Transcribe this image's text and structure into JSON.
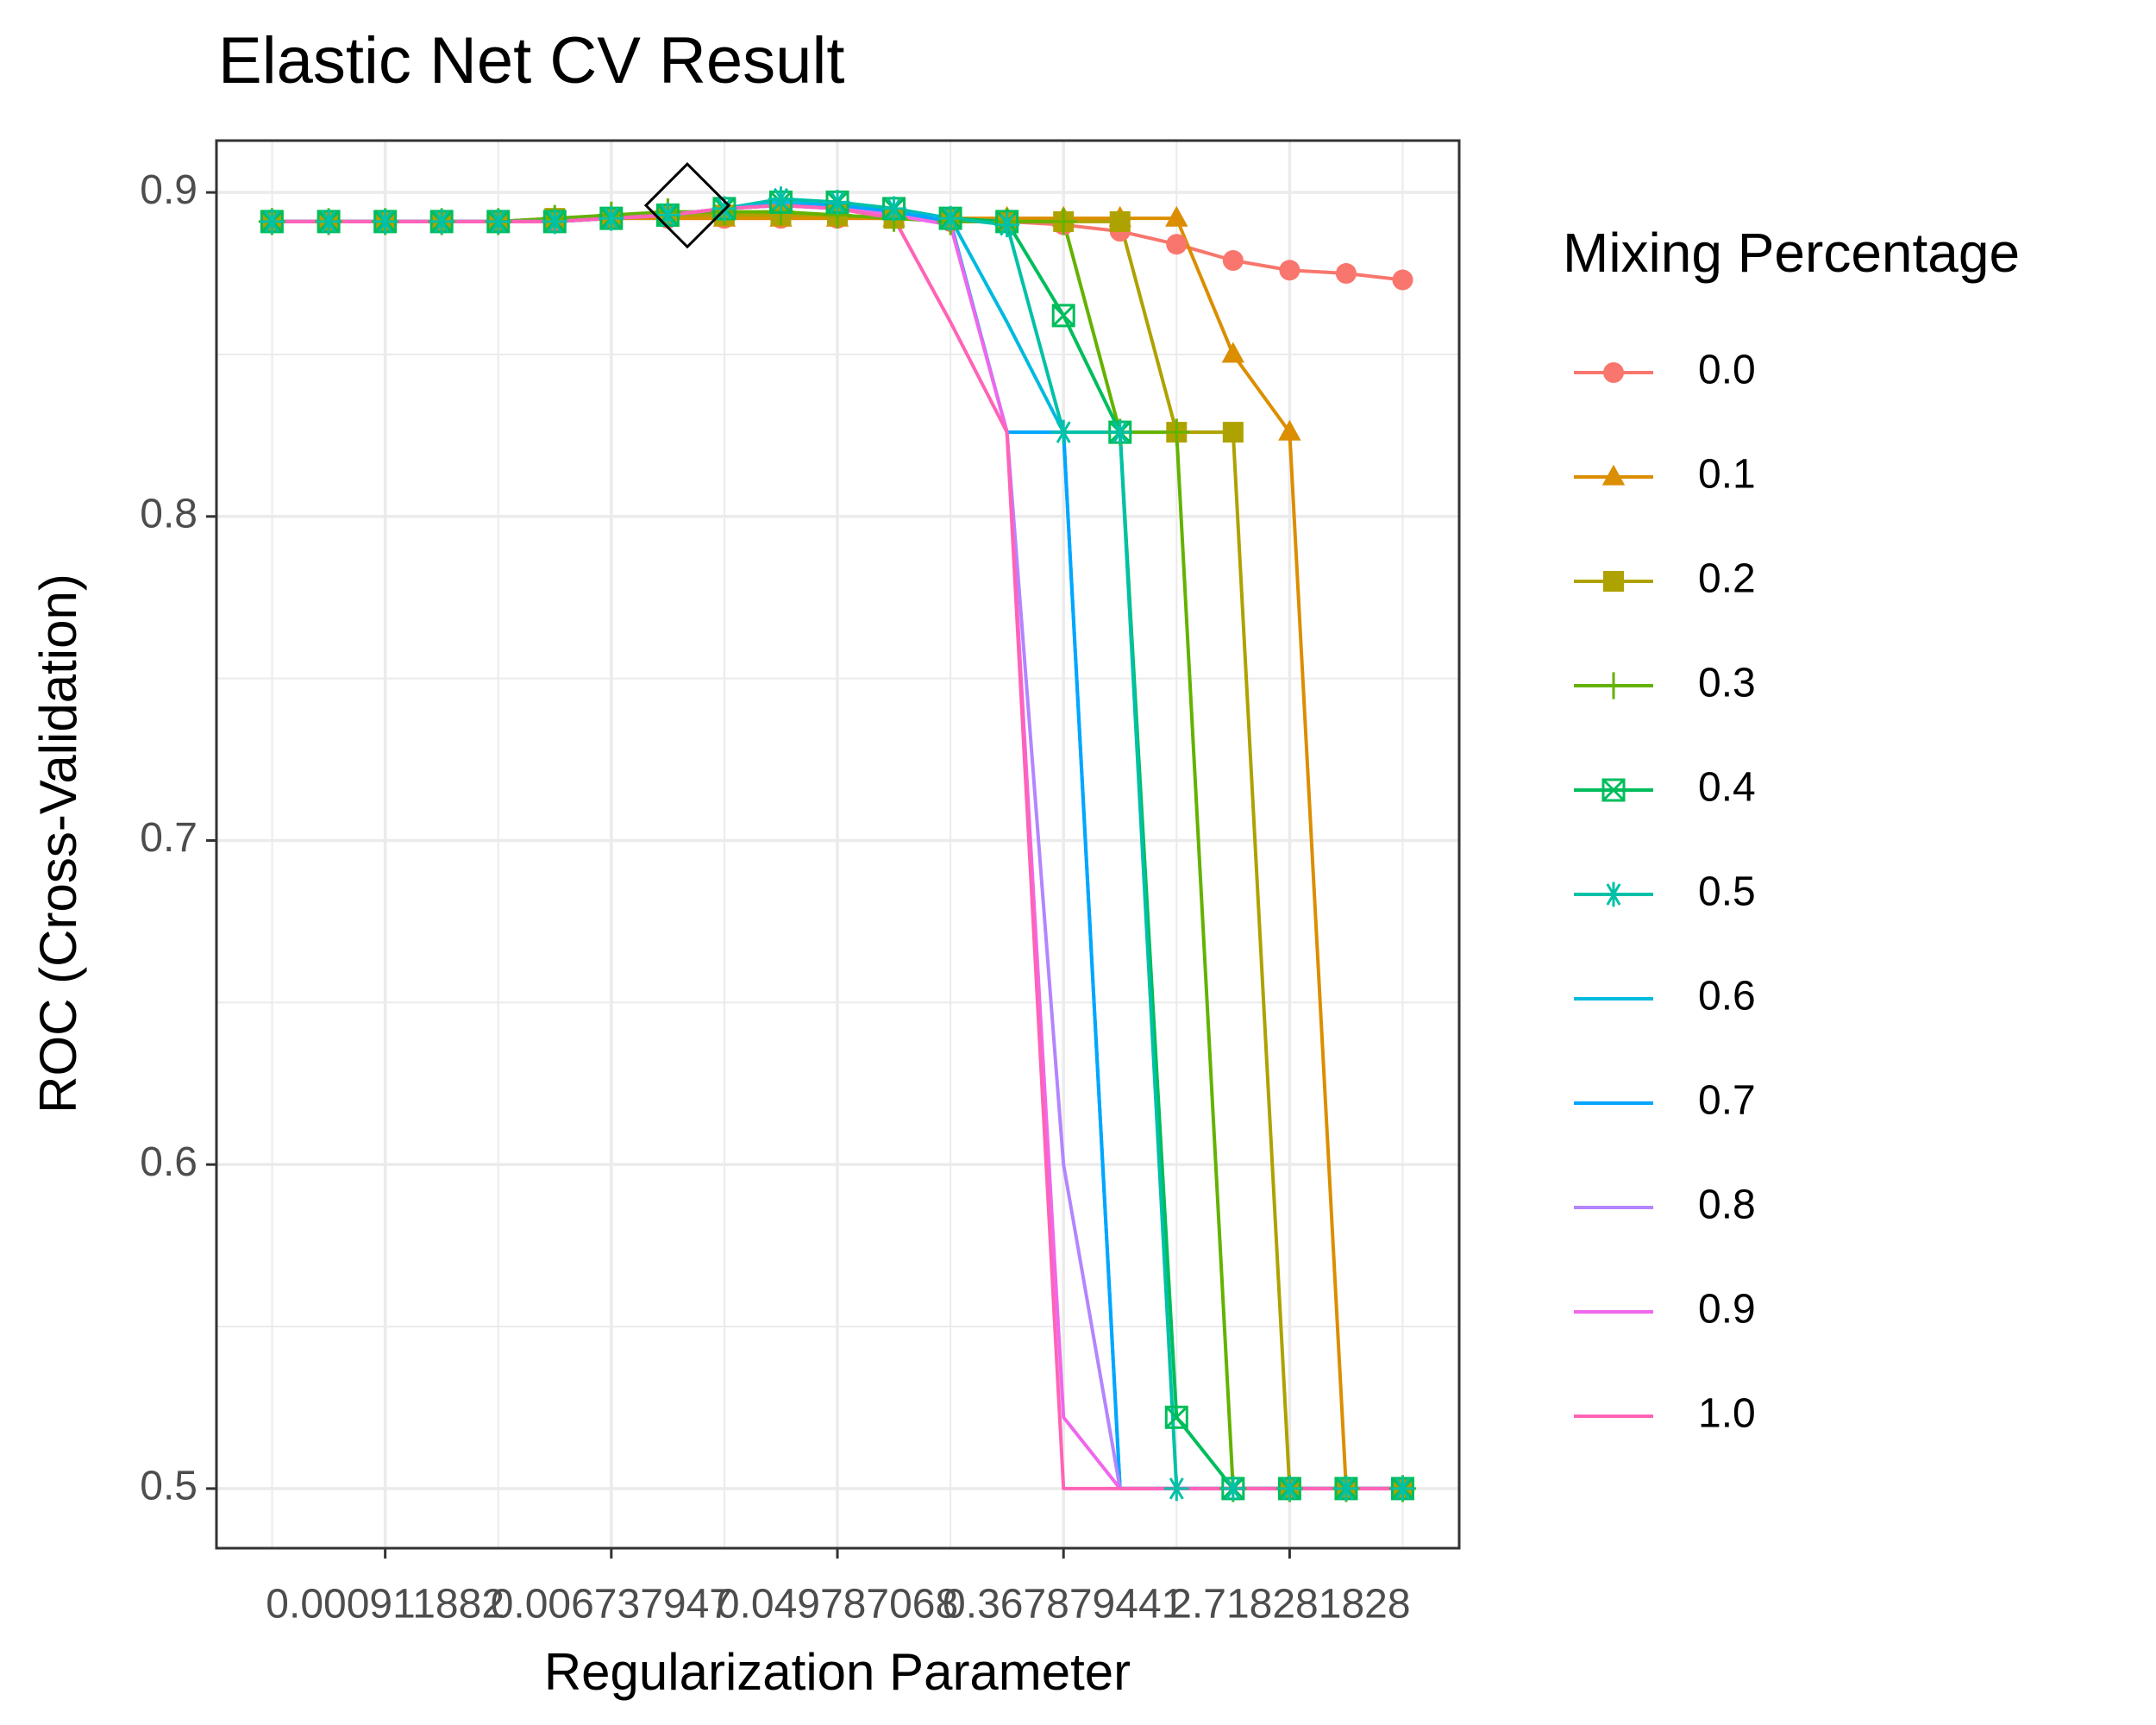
{
  "chart_data": {
    "type": "line",
    "title": "Elastic Net CV Result",
    "x_label": "Regularization Parameter",
    "y_label": "ROC (Cross-Validation)",
    "legend_title": "Mixing Percentage",
    "legend_position": "right",
    "xscale": "log",
    "grid": true,
    "xlim": [
      0.000205,
      12.18
    ],
    "ylim": [
      0.4816,
      0.916
    ],
    "xticks": [
      0.000911882,
      0.006737947,
      0.049787068,
      0.367879441,
      2.718281828
    ],
    "yticks": [
      0.5,
      0.6,
      0.7,
      0.8,
      0.9
    ],
    "x": [
      0.000335,
      0.000553,
      0.000912,
      0.001503,
      0.002479,
      0.004087,
      0.006738,
      0.011109,
      0.018316,
      0.030197,
      0.049787,
      0.082085,
      0.135335,
      0.22313,
      0.367879,
      0.606531,
      1,
      1.648721,
      2.718282,
      4.481689,
      7.389056
    ],
    "series": [
      {
        "name": "0.0",
        "color": "#F8766D",
        "shape": "circle",
        "values": [
          0.891,
          0.891,
          0.891,
          0.891,
          0.891,
          0.891,
          0.892,
          0.892,
          0.892,
          0.892,
          0.892,
          0.892,
          0.891,
          0.891,
          0.89,
          0.888,
          0.884,
          0.879,
          0.876,
          0.875,
          0.873
        ]
      },
      {
        "name": "0.1",
        "color": "#DB8E00",
        "shape": "triangle",
        "values": [
          0.891,
          0.891,
          0.891,
          0.891,
          0.891,
          0.892,
          0.892,
          0.892,
          0.892,
          0.892,
          0.892,
          0.892,
          0.892,
          0.892,
          0.892,
          0.892,
          0.892,
          0.85,
          0.826,
          0.5,
          0.5
        ]
      },
      {
        "name": "0.2",
        "color": "#AEA200",
        "shape": "square",
        "values": [
          0.891,
          0.891,
          0.891,
          0.891,
          0.891,
          0.892,
          0.892,
          0.893,
          0.893,
          0.893,
          0.893,
          0.892,
          0.892,
          0.891,
          0.891,
          0.891,
          0.826,
          0.826,
          0.5,
          0.5,
          0.5
        ]
      },
      {
        "name": "0.3",
        "color": "#64B200",
        "shape": "plus",
        "values": [
          0.891,
          0.891,
          0.891,
          0.891,
          0.891,
          0.892,
          0.893,
          0.894,
          0.894,
          0.894,
          0.893,
          0.892,
          0.891,
          0.891,
          0.891,
          0.826,
          0.826,
          0.5,
          0.5,
          0.5,
          0.5
        ]
      },
      {
        "name": "0.4",
        "color": "#00BD5C",
        "shape": "square-x",
        "values": [
          0.891,
          0.891,
          0.891,
          0.891,
          0.891,
          0.891,
          0.892,
          0.893,
          0.895,
          0.897,
          0.897,
          0.895,
          0.892,
          0.891,
          0.862,
          0.826,
          0.522,
          0.5,
          0.5,
          0.5,
          0.5
        ]
      },
      {
        "name": "0.5",
        "color": "#00C1A7",
        "shape": "asterisk",
        "values": [
          0.891,
          0.891,
          0.891,
          0.891,
          0.891,
          0.891,
          0.892,
          0.893,
          0.895,
          0.898,
          0.897,
          0.895,
          0.892,
          0.89,
          0.826,
          0.826,
          0.5,
          0.5,
          0.5,
          0.5,
          0.5
        ]
      },
      {
        "name": "0.6",
        "color": "#00BADE",
        "values": [
          0.891,
          0.891,
          0.891,
          0.891,
          0.891,
          0.891,
          0.892,
          0.893,
          0.895,
          0.897,
          0.896,
          0.894,
          0.892,
          0.86,
          0.826,
          0.5,
          0.5,
          0.5,
          0.5,
          0.5,
          0.5
        ]
      },
      {
        "name": "0.7",
        "color": "#00A6FF",
        "values": [
          0.891,
          0.891,
          0.891,
          0.891,
          0.891,
          0.891,
          0.892,
          0.893,
          0.895,
          0.896,
          0.896,
          0.894,
          0.891,
          0.826,
          0.826,
          0.5,
          0.5,
          0.5,
          0.5,
          0.5,
          0.5
        ]
      },
      {
        "name": "0.8",
        "color": "#B385FF",
        "values": [
          0.891,
          0.891,
          0.891,
          0.891,
          0.891,
          0.891,
          0.892,
          0.893,
          0.895,
          0.896,
          0.895,
          0.893,
          0.89,
          0.826,
          0.6,
          0.5,
          0.5,
          0.5,
          0.5,
          0.5,
          0.5
        ]
      },
      {
        "name": "0.9",
        "color": "#EF67EB",
        "values": [
          0.891,
          0.891,
          0.891,
          0.891,
          0.891,
          0.891,
          0.892,
          0.893,
          0.895,
          0.896,
          0.895,
          0.893,
          0.89,
          0.826,
          0.522,
          0.5,
          0.5,
          0.5,
          0.5,
          0.5,
          0.5
        ]
      },
      {
        "name": "1.0",
        "color": "#FF63B6",
        "values": [
          0.891,
          0.891,
          0.891,
          0.891,
          0.891,
          0.891,
          0.892,
          0.893,
          0.895,
          0.896,
          0.895,
          0.892,
          0.86,
          0.826,
          0.5,
          0.5,
          0.5,
          0.5,
          0.5,
          0.5,
          0.5
        ]
      }
    ],
    "best": {
      "x": 0.0132,
      "y": 0.896
    }
  }
}
